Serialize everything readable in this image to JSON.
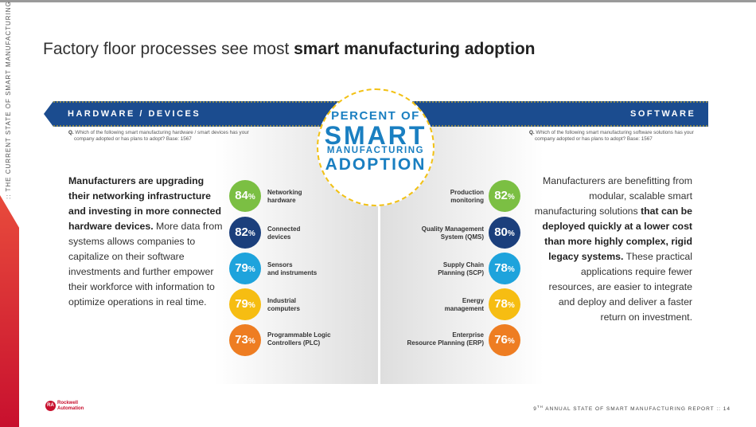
{
  "side_tag": ":: THE CURRENT STATE OF SMART MANUFACTURING ::",
  "title": {
    "normal": "Factory floor processes see most ",
    "bold": "smart manufacturing adoption"
  },
  "center": {
    "line1": "PERCENT OF",
    "line2": "SMART",
    "line3": "MANUFACTURING",
    "line4": "ADOPTION"
  },
  "colors": {
    "banner": "#1b4c8f",
    "green": "#7bbf43",
    "navy": "#1b3f7c",
    "blue": "#1ea3dc",
    "yellow": "#f6bd12",
    "orange": "#ee7d22",
    "border": "#f2c114"
  },
  "hardware": {
    "banner": "HARDWARE / DEVICES",
    "question_prefix": "Q.",
    "question": "Which of the following smart manufacturing hardware / smart devices has your company adopted or has plans to adopt? Base: 1567",
    "paragraph": {
      "bold1": "Manufacturers are upgrading their networking infrastructure and investing in more connected hardware devices.",
      "normal1": " More data from systems allows companies to capitalize on their software investments and further empower their workforce with information to optimize operations in real time."
    },
    "items": [
      {
        "value": "84",
        "pct": "%",
        "label1": "Networking",
        "label2": "hardware"
      },
      {
        "value": "82",
        "pct": "%",
        "label1": "Connected",
        "label2": "devices"
      },
      {
        "value": "79",
        "pct": "%",
        "label1": "Sensors",
        "label2": "and instruments"
      },
      {
        "value": "79",
        "pct": "%",
        "label1": "Industrial",
        "label2": "computers"
      },
      {
        "value": "73",
        "pct": "%",
        "label1": "Programmable Logic",
        "label2": "Controllers (PLC)"
      }
    ]
  },
  "software": {
    "banner": "SOFTWARE",
    "question_prefix": "Q.",
    "question": "Which of the following smart manufacturing software solutions has your company adopted or has plans to adopt? Base: 1567",
    "paragraph": {
      "normal1": "Manufacturers are benefitting from modular, scalable smart manufacturing solutions ",
      "bold1": "that can be deployed quickly at a lower cost than more highly complex, rigid legacy systems.",
      "normal2": " These practical applications require fewer resources, are easier to integrate and deploy and deliver a faster return on investment."
    },
    "items": [
      {
        "value": "82",
        "pct": "%",
        "label1": "Production",
        "label2": "monitoring"
      },
      {
        "value": "80",
        "pct": "%",
        "label1": "Quality Management",
        "label2": "System (QMS)"
      },
      {
        "value": "78",
        "pct": "%",
        "label1": "Supply Chain",
        "label2": "Planning (SCP)"
      },
      {
        "value": "78",
        "pct": "%",
        "label1": "Energy",
        "label2": "management"
      },
      {
        "value": "76",
        "pct": "%",
        "label1": "Enterprise",
        "label2": "Resource Planning (ERP)"
      }
    ]
  },
  "logo": {
    "icon": "RA",
    "line1": "Rockwell",
    "line2": "Automation"
  },
  "footer": {
    "num": "9",
    "sup": "TH",
    "text": " ANNUAL STATE OF SMART MANUFACTURING REPORT :: 14"
  }
}
